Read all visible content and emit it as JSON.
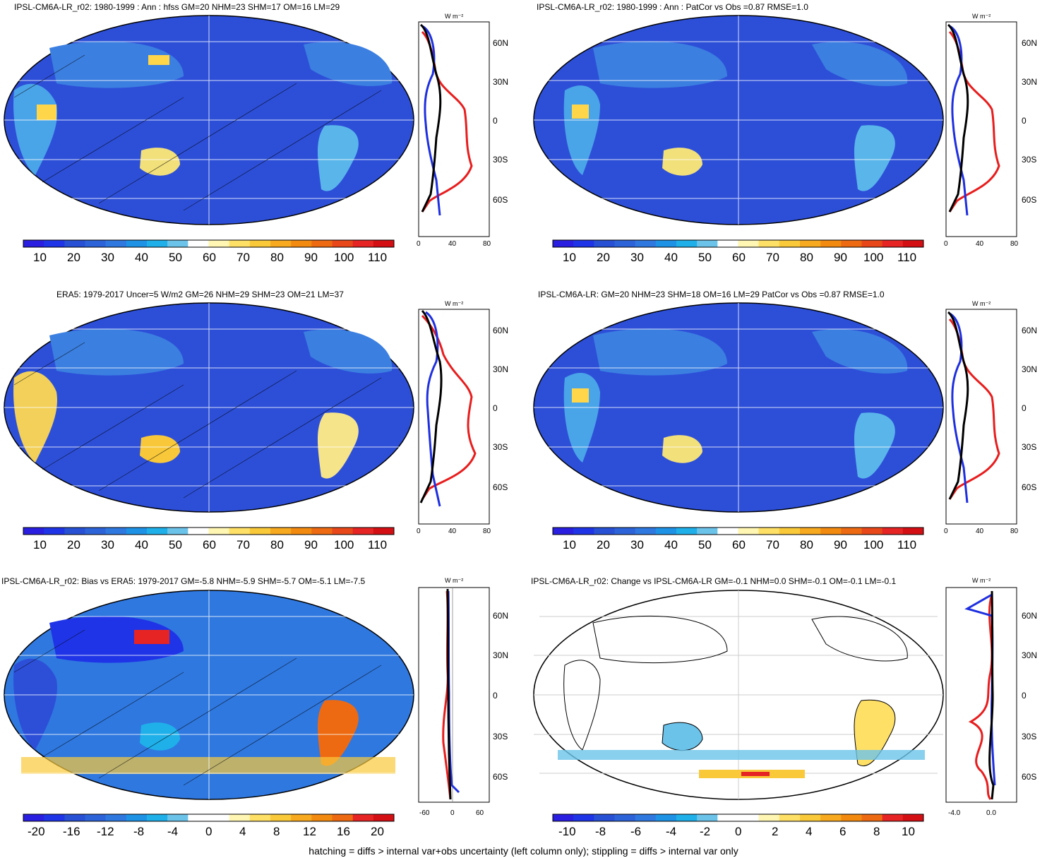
{
  "panels": [
    {
      "title": "IPSL-CM6A-LR_r02: 1980-1999 : Ann : hfss GM=20 NHM=23 SHM=17 OM=16 LM=29",
      "unit": "W m⁻²",
      "lat_ticks": [
        "60N",
        "30N",
        "0",
        "30S",
        "60S"
      ],
      "profile_ticks": [
        "0",
        "40",
        "80"
      ],
      "colorbar_ticks": [
        "10",
        "20",
        "30",
        "40",
        "50",
        "60",
        "70",
        "80",
        "90",
        "100",
        "110"
      ]
    },
    {
      "title": "IPSL-CM6A-LR_r02: 1980-1999 : Ann : PatCor vs Obs =0.87 RMSE=1.0",
      "unit": "W m⁻²",
      "lat_ticks": [
        "60N",
        "30N",
        "0",
        "30S",
        "60S"
      ],
      "profile_ticks": [
        "0",
        "40",
        "80"
      ],
      "colorbar_ticks": [
        "10",
        "20",
        "30",
        "40",
        "50",
        "60",
        "70",
        "80",
        "90",
        "100",
        "110"
      ]
    },
    {
      "title": "ERA5: 1979-2017 Uncer=5 W/m2 GM=26 NHM=29 SHM=23 OM=21 LM=37",
      "unit": "W m⁻²",
      "lat_ticks": [
        "60N",
        "30N",
        "0",
        "30S",
        "60S"
      ],
      "profile_ticks": [
        "0",
        "40",
        "80"
      ],
      "colorbar_ticks": [
        "10",
        "20",
        "30",
        "40",
        "50",
        "60",
        "70",
        "80",
        "90",
        "100",
        "110"
      ]
    },
    {
      "title": "IPSL-CM6A-LR: GM=20 NHM=23 SHM=18 OM=16 LM=29 PatCor vs Obs =0.87 RMSE=1.0",
      "unit": "W m⁻²",
      "lat_ticks": [
        "60N",
        "30N",
        "0",
        "30S",
        "60S"
      ],
      "profile_ticks": [
        "0",
        "40",
        "80"
      ],
      "colorbar_ticks": [
        "10",
        "20",
        "30",
        "40",
        "50",
        "60",
        "70",
        "80",
        "90",
        "100",
        "110"
      ]
    },
    {
      "title": "IPSL-CM6A-LR_r02: Bias vs ERA5: 1979-2017 GM=-5.8 NHM=-5.9 SHM=-5.7 OM=-5.1 LM=-7.5",
      "unit": "W m⁻²",
      "lat_ticks": [
        "60N",
        "30N",
        "0",
        "30S",
        "60S"
      ],
      "profile_ticks": [
        "-60",
        "0",
        "60"
      ],
      "colorbar_ticks": [
        "-20",
        "-16",
        "-12",
        "-8",
        "-4",
        "0",
        "4",
        "8",
        "12",
        "16",
        "20"
      ]
    },
    {
      "title": "IPSL-CM6A-LR_r02: Change vs IPSL-CM6A-LR GM=-0.1 NHM=0.0 SHM=-0.1 OM=-0.1 LM=-0.1",
      "unit": "W m⁻²",
      "lat_ticks": [
        "60N",
        "30N",
        "0",
        "30S",
        "60S"
      ],
      "profile_ticks": [
        "-4.0",
        "0.0"
      ],
      "colorbar_ticks": [
        "-10",
        "-8",
        "-6",
        "-4",
        "-2",
        "0",
        "2",
        "4",
        "6",
        "8",
        "10"
      ]
    }
  ],
  "colors": {
    "abs_scale": [
      "#2a1fe0",
      "#1f34e6",
      "#2750d4",
      "#2d63d8",
      "#2f78e0",
      "#1e93e6",
      "#1fb0ea",
      "#6cc3ea",
      "#ffffff",
      "#fff6b3",
      "#ffe066",
      "#f9c93a",
      "#f7a91f",
      "#f38a10",
      "#ee6a12",
      "#e8471a",
      "#e52423",
      "#d40f14"
    ],
    "diff_scale": [
      "#2a1fe0",
      "#1f34e6",
      "#2750d4",
      "#2d63d8",
      "#2f78e0",
      "#1e93e6",
      "#1fb0ea",
      "#6cc3ea",
      "#ffffff",
      "#ffffff",
      "#fff6b3",
      "#ffe066",
      "#f9c93a",
      "#f7a91f",
      "#f38a10",
      "#ee6a12",
      "#e52423",
      "#d40f14"
    ],
    "ocean_base": "#2d4fd8",
    "model_line": "#e81d1d",
    "obs_line": "#1e2fe0",
    "other_line": "#000000"
  },
  "footer": "hatching = diffs > internal var+obs uncertainty (left column only); stippling = diffs > internal var only"
}
